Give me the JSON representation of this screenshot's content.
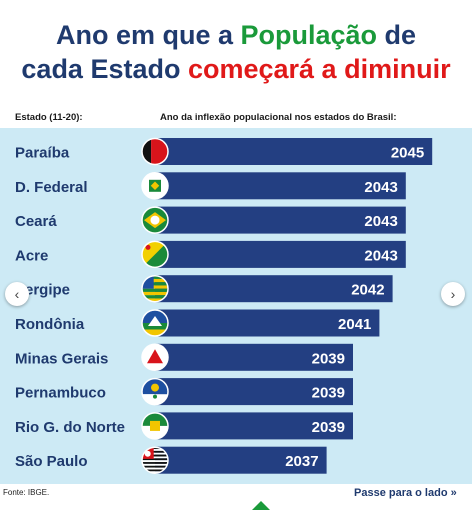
{
  "title": {
    "line1_part1": "Ano em que a ",
    "line1_highlight": "População",
    "line1_part2": " de",
    "line2_part1": "cada Estado ",
    "line2_highlight": "começará a diminuir"
  },
  "chart_data": {
    "type": "bar",
    "orientation": "horizontal",
    "category_header": "Estado (11-20):",
    "value_header": "Ano da inflexão populacional nos estados do Brasil:",
    "categories": [
      "Paraíba",
      "D. Federal",
      "Ceará",
      "Acre",
      "Sergipe",
      "Rondônia",
      "Minas Gerais",
      "Pernambuco",
      "Rio G. do Norte",
      "São Paulo"
    ],
    "values": [
      2045,
      2043,
      2043,
      2043,
      2042,
      2041,
      2039,
      2039,
      2039,
      2037
    ],
    "flag_icons": [
      "paraiba-flag-icon",
      "df-flag-icon",
      "ceara-flag-icon",
      "acre-flag-icon",
      "sergipe-flag-icon",
      "rondonia-flag-icon",
      "minas-gerais-flag-icon",
      "pernambuco-flag-icon",
      "rn-flag-icon",
      "sao-paulo-flag-icon"
    ],
    "bar_color": "#233f82",
    "background_color": "#cdeaf5"
  },
  "footer": {
    "source": "Fonte: IBGE.",
    "next_label": "Passe para o lado",
    "next_icon": "double-chevron-right-icon"
  },
  "nav": {
    "prev_icon": "chevron-left-icon",
    "next_icon": "chevron-right-icon"
  }
}
